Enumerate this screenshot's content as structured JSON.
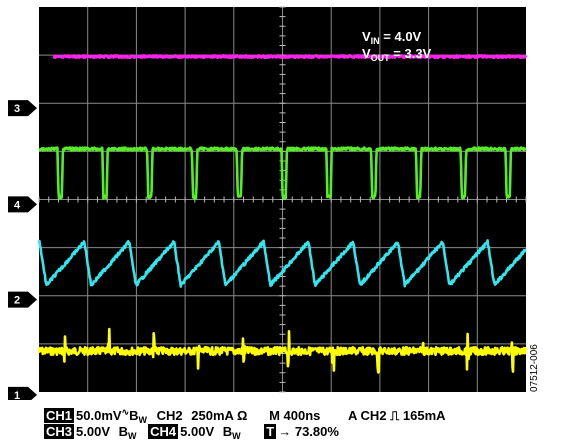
{
  "chart_data": {
    "type": "line",
    "title": "",
    "grid": true,
    "divisions": {
      "x": 10,
      "y": 8
    },
    "annotation": {
      "vin_label": "V",
      "vin_sub": "IN",
      "vin_value": " = 4.0V",
      "vout_label": "V",
      "vout_sub": "OUT",
      "vout_value": " = 3.3V"
    },
    "series": [
      {
        "name": "1",
        "color": "#ffff00",
        "baseline_div": 7.15,
        "waveform": "ripple_spikes",
        "period_div": 0.92,
        "phase_div": 0.5
      },
      {
        "name": "2",
        "color": "#33e6ee",
        "baseline_div": 5.33,
        "waveform": "sawtooth",
        "period_div": 0.92,
        "amplitude_div": 0.9,
        "phase_div": 0.15
      },
      {
        "name": "4",
        "color": "#55ee22",
        "baseline_div": 2.95,
        "waveform": "pulse_dips",
        "period_div": 0.92,
        "dip_depth_div": 1.0,
        "phase_div": 0.38
      },
      {
        "name": "3",
        "color": "#ff22ee",
        "baseline_div": 1.03,
        "waveform": "flat",
        "extends_from_div": 0.3
      }
    ],
    "markers": [
      {
        "label": "3",
        "color": "#ffffff",
        "y_div": 2.1
      },
      {
        "label": "4",
        "color": "#ffffff",
        "y_div": 4.1
      },
      {
        "label": "2",
        "color": "#ffffff",
        "y_div": 6.08
      },
      {
        "label": "1",
        "color": "#ffffff",
        "y_div": 8.06
      }
    ]
  },
  "status": {
    "ch1_badge": "CH1",
    "ch1_scale": "50.0mV",
    "ch1_coupling": "∿",
    "ch1_bw": "B",
    "ch1_bw_sub": "W",
    "ch2_label": "CH2",
    "ch2_scale": "250mA Ω",
    "timebase": "M 400ns",
    "trigger": "A  CH2  ⎍  165mA",
    "ch3_badge": "CH3",
    "ch3_scale": "5.00V",
    "ch3_bw": "B",
    "ch3_bw_sub": "W",
    "ch4_badge": "CH4",
    "ch4_scale": "5.00V",
    "ch4_bw": "B",
    "ch4_bw_sub": "W",
    "t_badge": "T",
    "trigger_position": "→ 73.80%"
  },
  "figure_code": "07512-006"
}
